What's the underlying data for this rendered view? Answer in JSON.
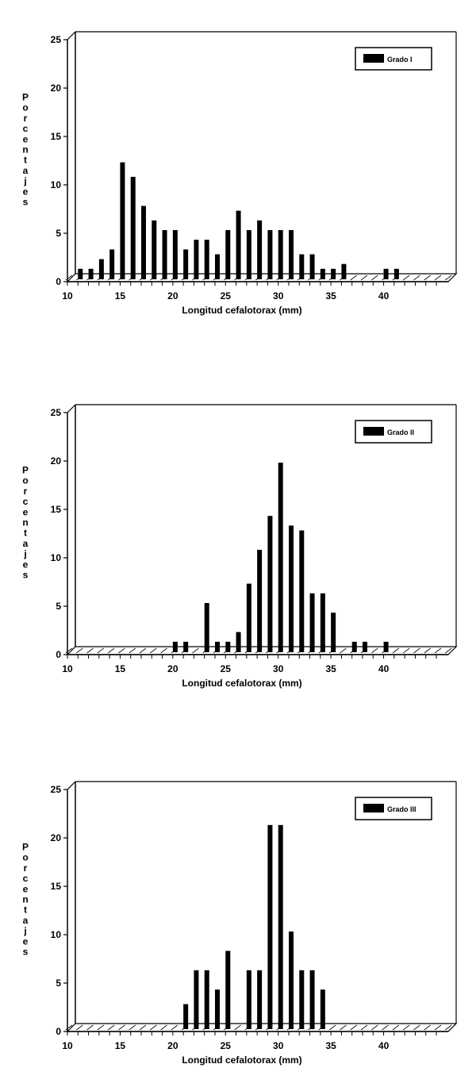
{
  "chart_data": [
    {
      "type": "bar",
      "ylabel": "Porcentajes",
      "xlabel": "Longitud cefalotorax (mm)",
      "legend": "Grado I",
      "legend_position": "top-right",
      "ylim": [
        0,
        25
      ],
      "yticks": [
        "0",
        "5",
        "10",
        "15",
        "20",
        "25"
      ],
      "xlim": [
        10,
        45
      ],
      "xticks": [
        "10",
        "15",
        "20",
        "25",
        "30",
        "35",
        "40"
      ],
      "x": [
        11,
        12,
        13,
        14,
        15,
        16,
        17,
        18,
        19,
        20,
        21,
        22,
        23,
        24,
        25,
        26,
        27,
        28,
        29,
        30,
        31,
        32,
        33,
        34,
        35,
        36,
        40,
        41
      ],
      "values": [
        1,
        1,
        2,
        3,
        12,
        10.5,
        7.5,
        6,
        5,
        5,
        3,
        4,
        4,
        2.5,
        5,
        7,
        5,
        6,
        5,
        5,
        5,
        2.5,
        2.5,
        1,
        1,
        1.5,
        1,
        1
      ]
    },
    {
      "type": "bar",
      "ylabel": "Porcentajes",
      "xlabel": "Longitud cefalotorax (mm)",
      "legend": "Grado II",
      "legend_position": "top-right",
      "ylim": [
        0,
        25
      ],
      "yticks": [
        "0",
        "5",
        "10",
        "15",
        "20",
        "25"
      ],
      "xlim": [
        10,
        45
      ],
      "xticks": [
        "10",
        "15",
        "20",
        "25",
        "30",
        "35",
        "40"
      ],
      "x": [
        20,
        21,
        23,
        24,
        25,
        26,
        27,
        28,
        29,
        30,
        31,
        32,
        33,
        34,
        35,
        37,
        38,
        40
      ],
      "values": [
        1,
        1,
        5,
        1,
        1,
        2,
        7,
        10.5,
        14,
        19.5,
        13,
        12.5,
        6,
        6,
        4,
        1,
        1,
        1
      ]
    },
    {
      "type": "bar",
      "ylabel": "Porcentajes",
      "xlabel": "Longitud cefalotorax (mm)",
      "legend": "Grado III",
      "legend_position": "top-right",
      "ylim": [
        0,
        25
      ],
      "yticks": [
        "0",
        "5",
        "10",
        "15",
        "20",
        "25"
      ],
      "xlim": [
        10,
        45
      ],
      "xticks": [
        "10",
        "15",
        "20",
        "25",
        "30",
        "35",
        "40"
      ],
      "x": [
        21,
        22,
        23,
        24,
        25,
        27,
        28,
        29,
        30,
        31,
        32,
        33,
        34
      ],
      "values": [
        2.5,
        6,
        6,
        4,
        8,
        6,
        6,
        21,
        21,
        10,
        6,
        6,
        4
      ]
    }
  ]
}
